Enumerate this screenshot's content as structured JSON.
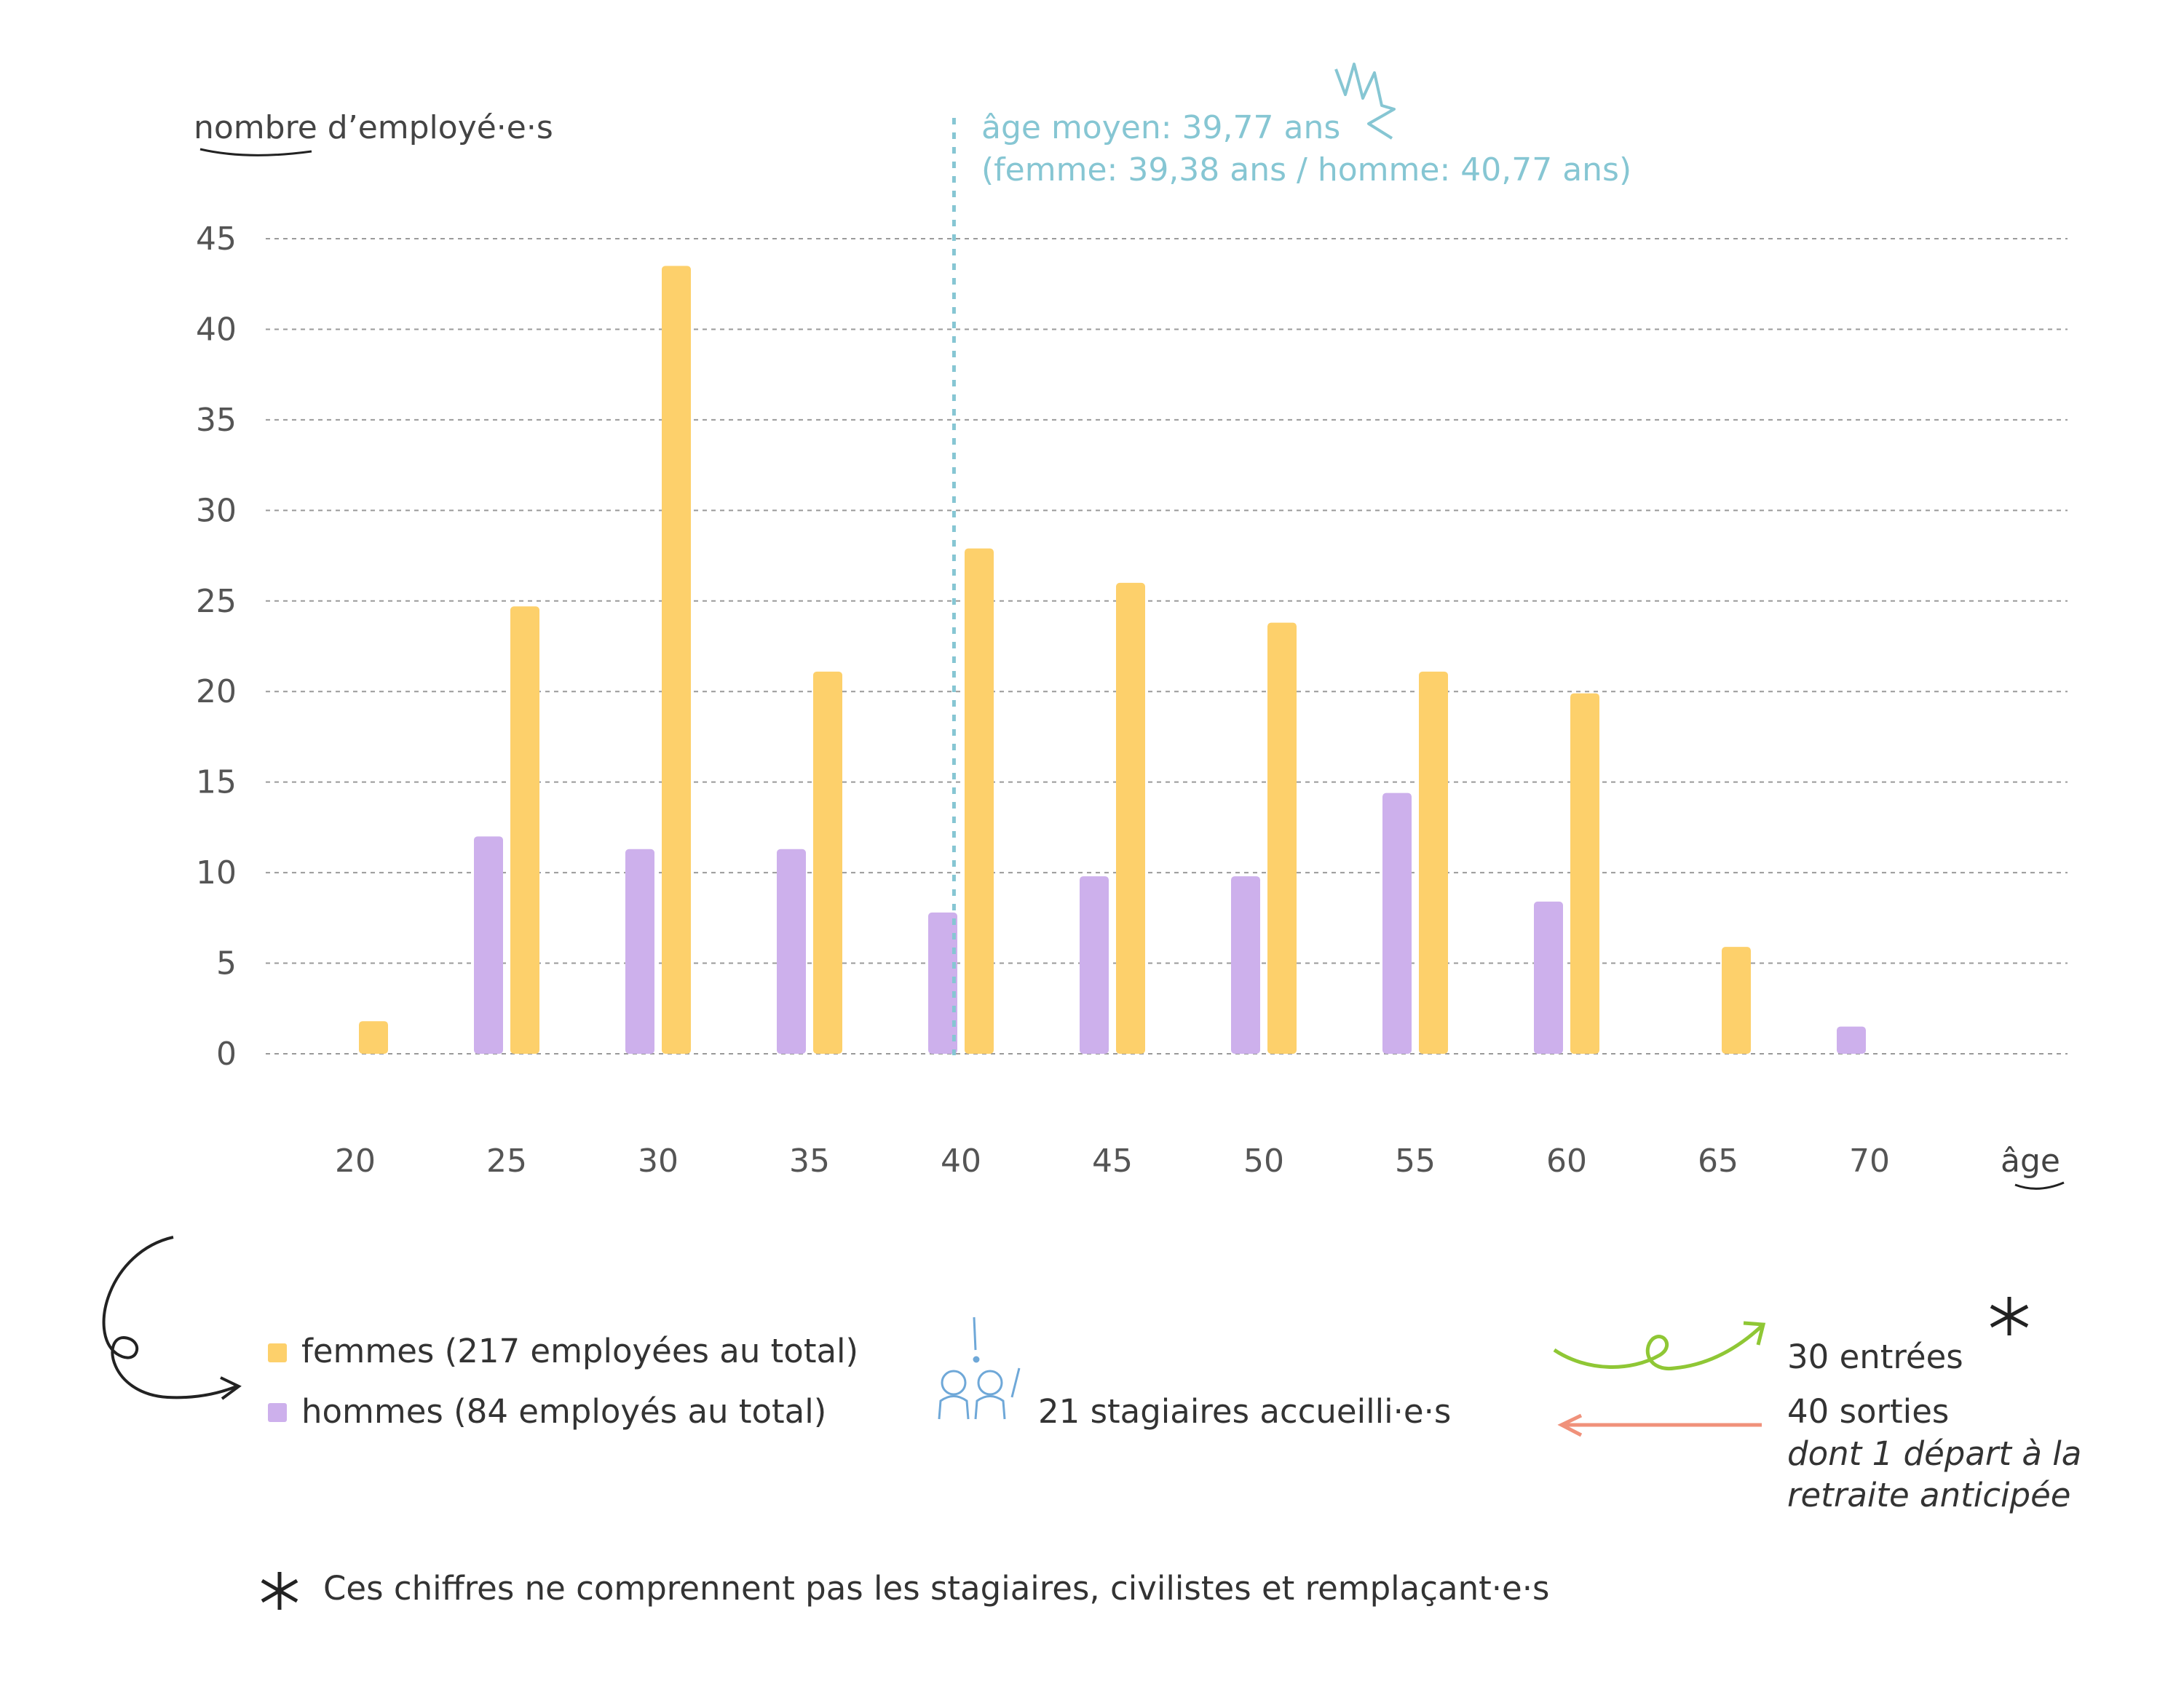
{
  "chart_data": {
    "type": "bar",
    "ylabel": "nombre d’employé·e·s",
    "xlabel": "âge",
    "ylim": [
      0,
      45
    ],
    "yticks": [
      0,
      5,
      10,
      15,
      20,
      25,
      30,
      35,
      40,
      45
    ],
    "grid": true,
    "categories": [
      "20",
      "25",
      "30",
      "35",
      "40",
      "45",
      "50",
      "55",
      "60",
      "65",
      "70"
    ],
    "series": [
      {
        "name": "hommes (84 employés au total)",
        "color": "#cdb0ec",
        "values": [
          null,
          12,
          11.3,
          11.3,
          7.8,
          9.8,
          9.8,
          14.4,
          8.4,
          null,
          1.5
        ]
      },
      {
        "name": "femmes (217 employées au total)",
        "color": "#fdd06b",
        "values": [
          1.8,
          24.7,
          43.5,
          21.1,
          27.9,
          26,
          23.8,
          21.1,
          19.9,
          5.9,
          null
        ]
      }
    ],
    "mean_line": {
      "value": 39.77,
      "color": "#86c6d3",
      "label_line1": "âge moyen: 39,77 ans",
      "label_line2": "(femme: 39,38 ans / homme: 40,77 ans)"
    }
  },
  "legend": {
    "femmes": "femmes (217 employées au total)",
    "hommes": "hommes (84 employés au total)",
    "stagiaires": "21 stagiaires accueilli·e·s",
    "entrees": "30 entrées",
    "sorties": "40 sorties",
    "sorties_note_1": "dont 1 départ à la",
    "sorties_note_2": "retraite anticipée",
    "colors": {
      "arrow_in": "#8fc735",
      "arrow_out": "#f0917a",
      "icon": "#6fa8d8"
    }
  },
  "footnote": "Ces chiffres ne comprennent pas les stagiaires, civilistes et remplaçant·e·s"
}
